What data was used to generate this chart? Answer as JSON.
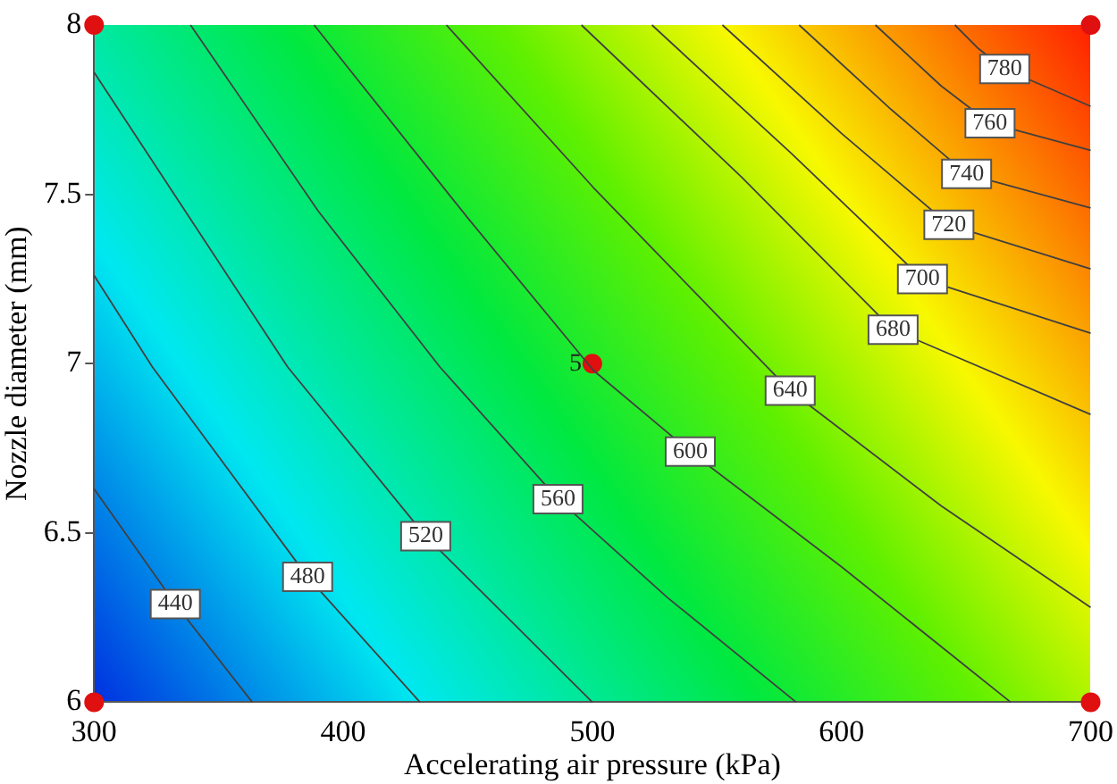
{
  "chart_data": {
    "type": "line",
    "xlabel": "Accelerating air pressure (kPa)",
    "ylabel": "Nozzle diameter (mm)",
    "xlim": [
      300,
      700
    ],
    "ylim": [
      6,
      8
    ],
    "xticks": [
      300,
      400,
      500,
      600,
      700
    ],
    "yticks": [
      6,
      6.5,
      7,
      7.5,
      8
    ],
    "grid": false,
    "legend": false,
    "marker": "none",
    "line_style": "solid",
    "series": [
      {
        "name": "440",
        "color": "#404040",
        "x": [
          300,
          332.6,
          363.5
        ],
        "values": [
          6.63,
          6.29,
          6.0
        ]
      },
      {
        "name": "480",
        "color": "#404040",
        "x": [
          300,
          323.4,
          385.7,
          430.8
        ],
        "values": [
          7.26,
          6.99,
          6.37,
          6.0
        ]
      },
      {
        "name": "520",
        "color": "#404040",
        "x": [
          300,
          377.7,
          433.1,
          470,
          500
        ],
        "values": [
          7.86,
          6.99,
          6.49,
          6.22,
          6.0
        ]
      },
      {
        "name": "560",
        "color": "#404040",
        "x": [
          338.7,
          390,
          438.8,
          486.2,
          530,
          581.8
        ],
        "values": [
          8,
          7.45,
          6.99,
          6.6,
          6.31,
          6.0
        ]
      },
      {
        "name": "600",
        "color": "#404040",
        "x": [
          388.3,
          450,
          500.4,
          539.3,
          600,
          667.9
        ],
        "values": [
          8,
          7.43,
          6.98,
          6.74,
          6.4,
          6.0
        ]
      },
      {
        "name": "640",
        "color": "#404040",
        "x": [
          441.4,
          500.4,
          579.4,
          640,
          700
        ],
        "values": [
          8,
          7.52,
          6.92,
          6.58,
          6.28
        ]
      },
      {
        "name": "680",
        "color": "#404040",
        "x": [
          495.6,
          560,
          620.7,
          700
        ],
        "values": [
          8,
          7.55,
          7.1,
          6.85
        ]
      },
      {
        "name": "700",
        "color": "#404040",
        "x": [
          523.9,
          580,
          632.5,
          700
        ],
        "values": [
          8,
          7.62,
          7.25,
          7.09
        ]
      },
      {
        "name": "720",
        "color": "#404040",
        "x": [
          552.2,
          600,
          643.1,
          700
        ],
        "values": [
          8,
          7.68,
          7.41,
          7.28
        ]
      },
      {
        "name": "740",
        "color": "#404040",
        "x": [
          583,
          620,
          650.2,
          700
        ],
        "values": [
          8,
          7.75,
          7.56,
          7.46
        ]
      },
      {
        "name": "760",
        "color": "#404040",
        "x": [
          613.6,
          640,
          659.6,
          700
        ],
        "values": [
          8,
          7.82,
          7.71,
          7.63
        ]
      },
      {
        "name": "780",
        "color": "#404040",
        "x": [
          645.5,
          655,
          665.5,
          700
        ],
        "values": [
          8,
          7.93,
          7.87,
          7.76
        ]
      },
      {
        "type": "scatter",
        "marker": "circle",
        "color": "#e01010",
        "x": [
          300,
          300,
          700,
          700,
          500
        ],
        "values": [
          6,
          8,
          6,
          8,
          7
        ]
      }
    ],
    "annotations": [
      {
        "text": "5",
        "x": 500,
        "y": 7
      }
    ]
  }
}
